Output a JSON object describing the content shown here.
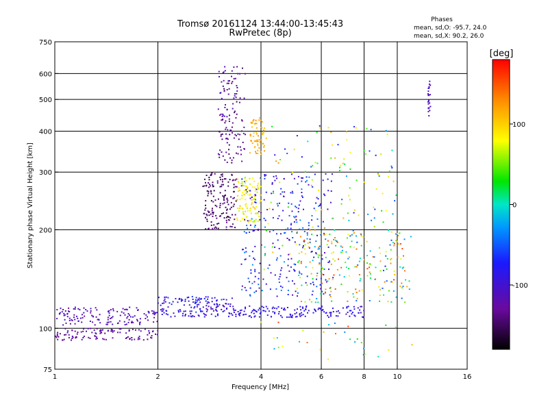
{
  "chart_data": {
    "type": "scatter",
    "title": "Tromsø 20161124 13:44:00-13:45:43",
    "subtitle": "RwPretec (8p)",
    "stats": {
      "heading": "Phases",
      "line1": "mean, sd,O: -95.7, 24.0",
      "line2": "mean, sd,X:  90.2, 26.0"
    },
    "xlabel": "Frequency [MHz]",
    "ylabel": "Stationary phase Virtual Height [km]",
    "x_scale": "log",
    "y_scale": "log",
    "xlim": [
      1,
      16
    ],
    "ylim": [
      75,
      750
    ],
    "x_ticks": [
      1,
      2,
      4,
      6,
      8,
      10,
      16
    ],
    "y_ticks": [
      75,
      100,
      200,
      300,
      400,
      500,
      600,
      750
    ],
    "x_grid": [
      2,
      4,
      6,
      8,
      10
    ],
    "y_grid": [
      100,
      200,
      300,
      400,
      500,
      600
    ],
    "grid": true,
    "colorbar": {
      "label": "[deg]",
      "range": [
        -180,
        180
      ],
      "ticks": [
        100,
        0,
        -100
      ],
      "tick_labels": [
        "100",
        "0",
        "-100"
      ],
      "colormap": "rainbow (black-purple-blue-cyan-green-yellow-orange-red)"
    },
    "point_clusters": [
      {
        "f": [
          1.0,
          2.0
        ],
        "h": [
          92,
          100
        ],
        "phase": [
          -140,
          -110
        ],
        "n": 110,
        "desc": "lower E-layer trace"
      },
      {
        "f": [
          1.0,
          2.0
        ],
        "h": [
          102,
          116
        ],
        "phase": [
          -130,
          -95
        ],
        "n": 140,
        "desc": "upper E-layer trace"
      },
      {
        "f": [
          2.0,
          3.3
        ],
        "h": [
          108,
          125
        ],
        "phase": [
          -120,
          -60
        ],
        "n": 160,
        "desc": "E trace continuing"
      },
      {
        "f": [
          3.3,
          8.0
        ],
        "h": [
          108,
          117
        ],
        "phase": [
          -110,
          -70
        ],
        "n": 160,
        "desc": "Es trace"
      },
      {
        "f": [
          2.7,
          3.4
        ],
        "h": [
          200,
          300
        ],
        "phase": [
          -160,
          -130
        ],
        "n": 160,
        "desc": "O-mode F trace"
      },
      {
        "f": [
          3.0,
          3.6
        ],
        "h": [
          320,
          630
        ],
        "phase": [
          -150,
          -110
        ],
        "n": 130,
        "desc": "O-mode spread"
      },
      {
        "f": [
          3.4,
          4.0
        ],
        "h": [
          210,
          290
        ],
        "phase": [
          60,
          110
        ],
        "n": 110,
        "desc": "X-mode F trace"
      },
      {
        "f": [
          3.7,
          4.1
        ],
        "h": [
          340,
          440
        ],
        "phase": [
          100,
          130
        ],
        "n": 60,
        "desc": "X-mode spread"
      },
      {
        "f": [
          3.5,
          6.5
        ],
        "h": [
          125,
          300
        ],
        "phase": [
          -120,
          -30
        ],
        "n": 280,
        "desc": "F spread blue"
      },
      {
        "f": [
          5.0,
          11.0
        ],
        "h": [
          120,
          200
        ],
        "phase": [
          -60,
          160
        ],
        "n": 210,
        "desc": "mixed spread"
      },
      {
        "f": [
          4.0,
          10.0
        ],
        "h": [
          150,
          420
        ],
        "phase": [
          -90,
          130
        ],
        "n": 150,
        "desc": "scattered high"
      },
      {
        "f": [
          12.3,
          12.5
        ],
        "h": [
          440,
          590
        ],
        "phase": [
          -120,
          -100
        ],
        "n": 24,
        "desc": "vertical column"
      },
      {
        "f": [
          4.0,
          12.0
        ],
        "h": [
          80,
          105
        ],
        "phase": [
          -40,
          170
        ],
        "n": 30,
        "desc": "low noise"
      }
    ]
  }
}
